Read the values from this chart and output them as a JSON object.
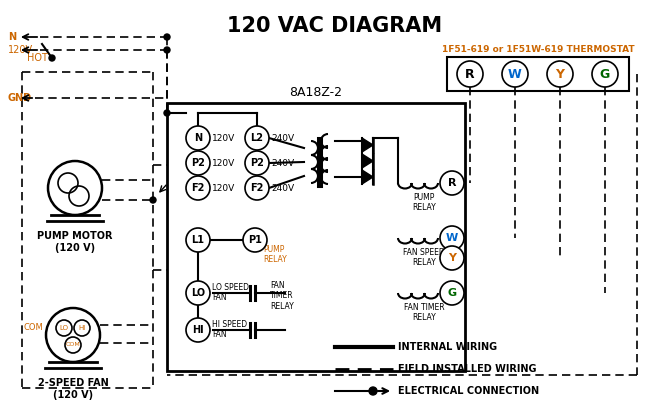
{
  "title": "120 VAC DIAGRAM",
  "bg_color": "#ffffff",
  "orange_color": "#cc6600",
  "blue_color": "#0066cc",
  "green_color": "#006600",
  "thermostat_label": "1F51-619 or 1F51W-619 THERMOSTAT",
  "control_box_label": "8A18Z-2",
  "legend_internal": "INTERNAL WIRING",
  "legend_field": "FIELD INSTALLED WIRING",
  "legend_electrical": "ELECTRICAL CONNECTION",
  "pump_motor_label": "PUMP MOTOR\n(120 V)",
  "fan_label": "2-SPEED FAN\n(120 V)",
  "terminals_thermostat": [
    "R",
    "W",
    "Y",
    "G"
  ],
  "therm_term_colors": [
    "#000000",
    "#0066cc",
    "#cc6600",
    "#006600"
  ],
  "left_terms": [
    "N",
    "P2",
    "F2"
  ],
  "right_terms": [
    "L2",
    "P2",
    "F2"
  ],
  "left_volts": [
    "120V",
    "120V",
    "120V"
  ],
  "right_volts": [
    "240V",
    "240V",
    "240V"
  ],
  "relay_labels_right": [
    "R",
    "W",
    "Y",
    "G"
  ],
  "relay_term_colors": [
    "#000000",
    "#0066cc",
    "#cc6600",
    "#006600"
  ]
}
